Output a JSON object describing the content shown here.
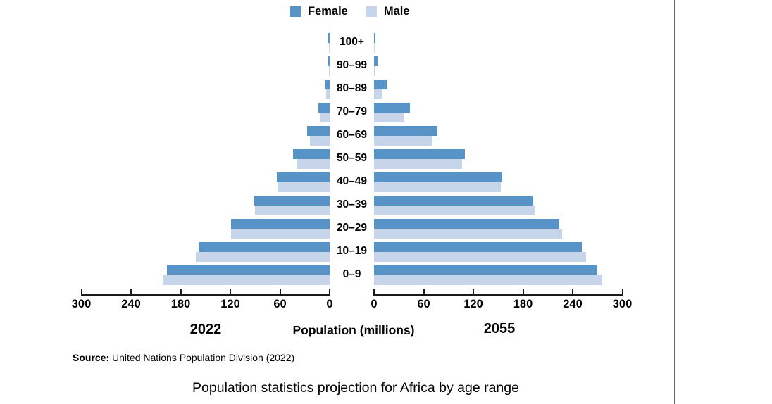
{
  "legend": {
    "items": [
      {
        "label": "Female",
        "color": "#5793C6"
      },
      {
        "label": "Male",
        "color": "#C7D5EB"
      }
    ]
  },
  "chart_data": {
    "type": "bar",
    "subtype": "population-pyramid",
    "title": "Population statistics projection for Africa by age range",
    "xlabel": "Population (millions)",
    "unit": "millions",
    "grid": false,
    "legend_position": "top-center",
    "age_groups": [
      "100+",
      "90–99",
      "80–89",
      "70–79",
      "60–69",
      "50–59",
      "40–49",
      "30–39",
      "20–29",
      "10–19",
      "0–9"
    ],
    "panels": [
      {
        "year": "2022",
        "side": "left",
        "xlim": [
          0,
          300
        ],
        "axis_ticks": [
          300,
          240,
          180,
          120,
          60,
          0
        ],
        "series": [
          {
            "name": "Female",
            "color": "#5793C6",
            "values": [
              1.5,
              2,
              6,
              14,
              27,
              44,
              64,
              91,
              119,
              158,
              197
            ]
          },
          {
            "name": "Male",
            "color": "#C7D5EB",
            "values": [
              0.8,
              1,
              4,
              11,
              24,
              40,
              63,
              90,
              119,
              162,
              202
            ]
          }
        ]
      },
      {
        "year": "2055",
        "side": "right",
        "xlim": [
          0,
          300
        ],
        "axis_ticks": [
          0,
          60,
          120,
          180,
          240,
          300
        ],
        "series": [
          {
            "name": "Female",
            "color": "#5793C6",
            "values": [
              2,
              4,
              15,
              43,
              77,
              110,
              155,
              192,
              224,
              251,
              270
            ]
          },
          {
            "name": "Male",
            "color": "#C7D5EB",
            "values": [
              1,
              2,
              10,
              36,
              70,
              106,
              153,
              194,
              227,
              256,
              276
            ]
          }
        ]
      }
    ]
  },
  "labels": {
    "source_prefix": "Source:",
    "source_text": " United Nations Population Division (2022)"
  }
}
